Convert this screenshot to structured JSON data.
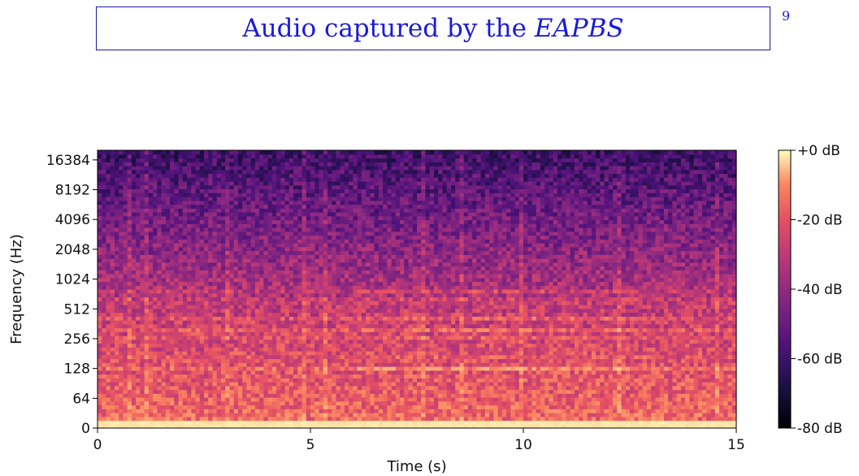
{
  "slide": {
    "title_prefix": "Audio captured by the ",
    "title_emphasis": "EAPBS",
    "page_number": "9"
  },
  "chart_data": {
    "type": "heatmap",
    "title": "",
    "xlabel": "Time (s)",
    "ylabel": "Frequency (Hz)",
    "xlim": [
      0,
      15
    ],
    "x_ticks": [
      0,
      5,
      10,
      15
    ],
    "x_tick_labels": [
      "0",
      "5",
      "10",
      "15"
    ],
    "y_ticks": [
      0,
      64,
      128,
      256,
      512,
      1024,
      2048,
      4096,
      8192,
      16384
    ],
    "y_tick_labels": [
      "0",
      "64",
      "128",
      "256",
      "512",
      "1024",
      "2048",
      "4096",
      "8192",
      "16384"
    ],
    "y_scale": "log2",
    "colormap": "magma",
    "colorbar": {
      "range": [
        -80,
        0
      ],
      "ticks": [
        0,
        -20,
        -40,
        -60,
        -80
      ],
      "tick_labels": [
        "+0 dB",
        "-20 dB",
        "-40 dB",
        "-60 dB",
        "-80 dB"
      ]
    },
    "harmonic_bands_hz": [
      128,
      175,
      256,
      320,
      420,
      620,
      760
    ],
    "grid": false,
    "legend": "none"
  }
}
